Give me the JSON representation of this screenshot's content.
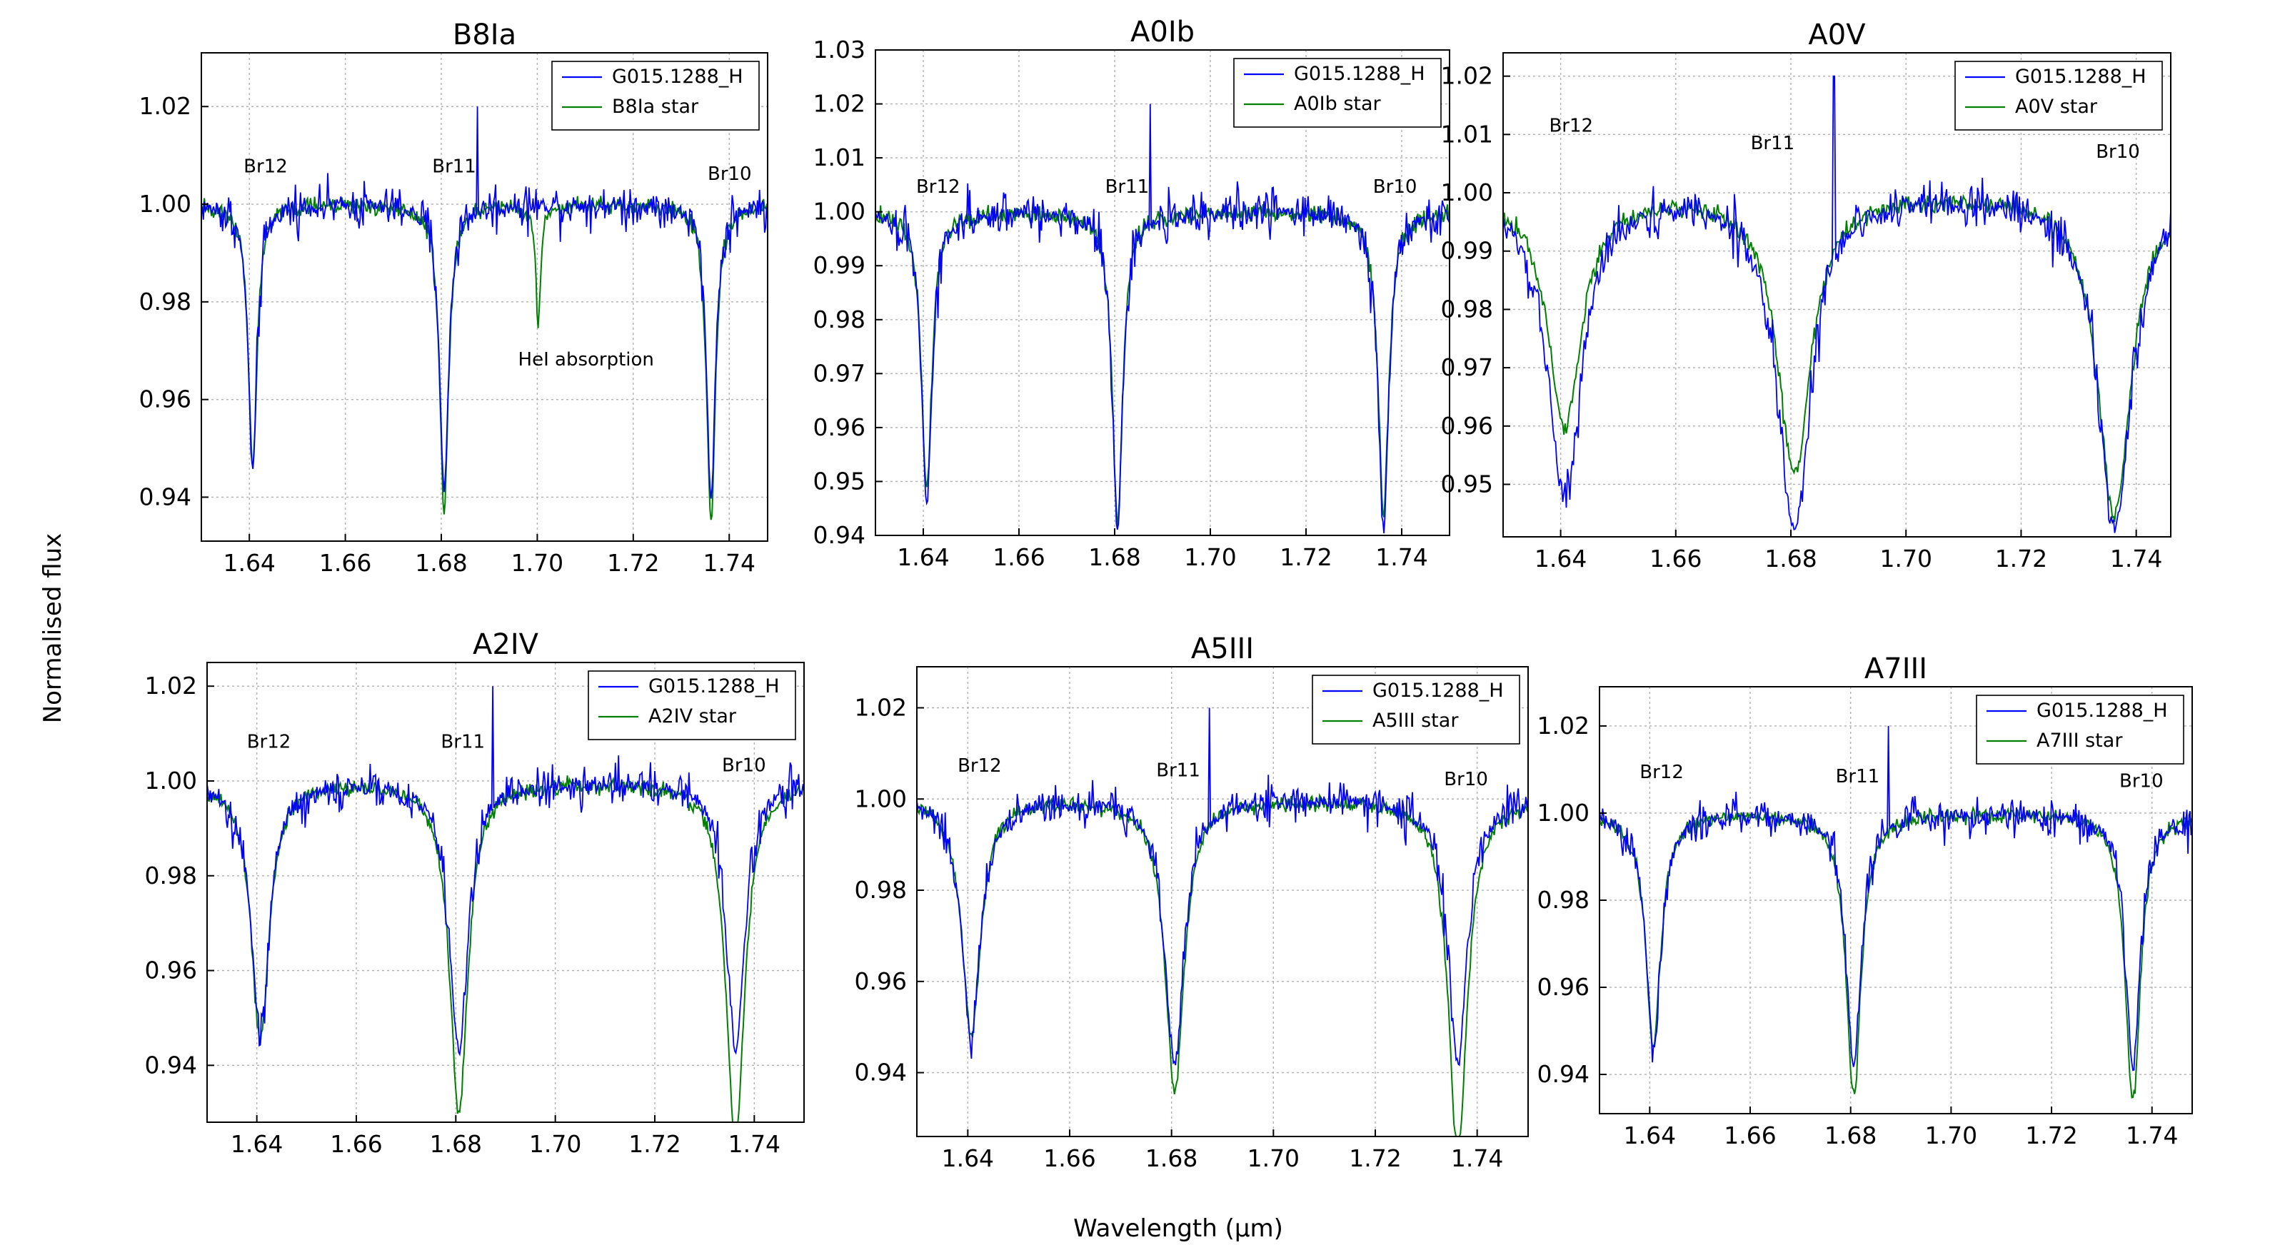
{
  "figure": {
    "ylabel": "Normalised flux",
    "xlabel": "Wavelength (µm)"
  },
  "colors": {
    "observed": "#0000ff",
    "template": "#008000",
    "grid": "#b0b0b0"
  },
  "chart_data": [
    {
      "type": "line",
      "title": "B8Ia",
      "xlim": [
        1.63,
        1.748
      ],
      "ylim": [
        0.931,
        1.031
      ],
      "xticks": [
        "1.64",
        "1.66",
        "1.68",
        "1.70",
        "1.72",
        "1.74"
      ],
      "yticks": [
        "0.94",
        "0.96",
        "0.98",
        "1.00",
        "1.02"
      ],
      "grid": true,
      "legend_placement": "top-right",
      "series": [
        {
          "name": "G015.1288_H",
          "role": "observed"
        },
        {
          "name": "B8Ia star",
          "role": "template"
        }
      ],
      "lines": [
        {
          "label": "Br12",
          "center": 1.6407,
          "obs_depth": 0.055,
          "tpl_depth": 0.054,
          "width": 0.0011
        },
        {
          "label": "Br11",
          "center": 1.6806,
          "obs_depth": 0.059,
          "tpl_depth": 0.063,
          "width": 0.0011
        },
        {
          "label": "Br10",
          "center": 1.7362,
          "obs_depth": 0.06,
          "tpl_depth": 0.066,
          "width": 0.0011
        }
      ],
      "extra_absorption": {
        "center": 1.7002,
        "depth": 0.025,
        "width": 0.0006
      },
      "annotations": [
        {
          "text": "Br12",
          "x": 1.6388,
          "y": 1.0065
        },
        {
          "text": "Br11",
          "x": 1.6781,
          "y": 1.0065
        },
        {
          "text": "Br10",
          "x": 1.7355,
          "y": 1.005
        },
        {
          "text": "HeI absorption",
          "x": 1.696,
          "y": 0.967
        }
      ],
      "spike": {
        "x": 1.6875,
        "y": 1.02
      },
      "noise": 0.0045
    },
    {
      "type": "line",
      "title": "A0Ib",
      "xlim": [
        1.63,
        1.75
      ],
      "ylim": [
        0.94,
        1.03
      ],
      "xticks": [
        "1.64",
        "1.66",
        "1.68",
        "1.70",
        "1.72",
        "1.74"
      ],
      "yticks": [
        "0.94",
        "0.95",
        "0.96",
        "0.97",
        "0.98",
        "0.99",
        "1.00",
        "1.01",
        "1.02",
        "1.03"
      ],
      "grid": true,
      "legend_placement": "top-right",
      "series": [
        {
          "name": "G015.1288_H",
          "role": "observed"
        },
        {
          "name": "A0Ib star",
          "role": "template"
        }
      ],
      "lines": [
        {
          "label": "Br12",
          "center": 1.6407,
          "obs_depth": 0.054,
          "tpl_depth": 0.052,
          "width": 0.0013
        },
        {
          "label": "Br11",
          "center": 1.6806,
          "obs_depth": 0.059,
          "tpl_depth": 0.058,
          "width": 0.0013
        },
        {
          "label": "Br10",
          "center": 1.7362,
          "obs_depth": 0.059,
          "tpl_depth": 0.056,
          "width": 0.0013
        }
      ],
      "annotations": [
        {
          "text": "Br12",
          "x": 1.6385,
          "y": 1.0035
        },
        {
          "text": "Br11",
          "x": 1.678,
          "y": 1.0035
        },
        {
          "text": "Br10",
          "x": 1.734,
          "y": 1.0035
        }
      ],
      "spike": {
        "x": 1.6875,
        "y": 1.02
      },
      "noise": 0.0045
    },
    {
      "type": "line",
      "title": "A0V",
      "xlim": [
        1.63,
        1.746
      ],
      "ylim": [
        0.941,
        1.024
      ],
      "xticks": [
        "1.64",
        "1.66",
        "1.68",
        "1.70",
        "1.72",
        "1.74"
      ],
      "yticks": [
        "0.95",
        "0.96",
        "0.97",
        "0.98",
        "0.99",
        "1.00",
        "1.01",
        "1.02"
      ],
      "grid": true,
      "legend_placement": "top-right",
      "series": [
        {
          "name": "G015.1288_H",
          "role": "observed"
        },
        {
          "name": "A0V star",
          "role": "template"
        }
      ],
      "lines": [
        {
          "label": "Br12",
          "center": 1.6407,
          "obs_depth": 0.052,
          "tpl_depth": 0.04,
          "width": 0.0035
        },
        {
          "label": "Br11",
          "center": 1.6806,
          "obs_depth": 0.057,
          "tpl_depth": 0.048,
          "width": 0.0035
        },
        {
          "label": "Br10",
          "center": 1.7362,
          "obs_depth": 0.057,
          "tpl_depth": 0.055,
          "width": 0.0035
        }
      ],
      "annotations": [
        {
          "text": "Br12",
          "x": 1.638,
          "y": 1.0105
        },
        {
          "text": "Br11",
          "x": 1.673,
          "y": 1.0075
        },
        {
          "text": "Br10",
          "x": 1.733,
          "y": 1.006
        }
      ],
      "spike": {
        "x": 1.6875,
        "y": 1.02
      },
      "noise": 0.0045
    },
    {
      "type": "line",
      "title": "A2IV",
      "xlim": [
        1.63,
        1.75
      ],
      "ylim": [
        0.928,
        1.025
      ],
      "xticks": [
        "1.64",
        "1.66",
        "1.68",
        "1.70",
        "1.72",
        "1.74"
      ],
      "yticks": [
        "0.94",
        "0.96",
        "0.98",
        "1.00",
        "1.02"
      ],
      "grid": true,
      "legend_placement": "top-right",
      "series": [
        {
          "name": "G015.1288_H",
          "role": "observed"
        },
        {
          "name": "A2IV star",
          "role": "template"
        }
      ],
      "lines": [
        {
          "label": "Br12",
          "center": 1.6407,
          "obs_depth": 0.053,
          "tpl_depth": 0.055,
          "width": 0.0022
        },
        {
          "label": "Br11",
          "center": 1.6806,
          "obs_depth": 0.057,
          "tpl_depth": 0.07,
          "width": 0.0022
        },
        {
          "label": "Br10",
          "center": 1.7362,
          "obs_depth": 0.057,
          "tpl_depth": 0.077,
          "width": 0.0022
        }
      ],
      "annotations": [
        {
          "text": "Br12",
          "x": 1.638,
          "y": 1.007
        },
        {
          "text": "Br11",
          "x": 1.677,
          "y": 1.007
        },
        {
          "text": "Br10",
          "x": 1.7335,
          "y": 1.002
        }
      ],
      "spike": {
        "x": 1.6875,
        "y": 1.02
      },
      "noise": 0.0045
    },
    {
      "type": "line",
      "title": "A5III",
      "xlim": [
        1.63,
        1.75
      ],
      "ylim": [
        0.926,
        1.029
      ],
      "xticks": [
        "1.64",
        "1.66",
        "1.68",
        "1.70",
        "1.72",
        "1.74"
      ],
      "yticks": [
        "0.94",
        "0.96",
        "0.98",
        "1.00",
        "1.02"
      ],
      "grid": true,
      "legend_placement": "top-right",
      "series": [
        {
          "name": "G015.1288_H",
          "role": "observed"
        },
        {
          "name": "A5III star",
          "role": "template"
        }
      ],
      "lines": [
        {
          "label": "Br12",
          "center": 1.6407,
          "obs_depth": 0.053,
          "tpl_depth": 0.052,
          "width": 0.0022
        },
        {
          "label": "Br11",
          "center": 1.6806,
          "obs_depth": 0.058,
          "tpl_depth": 0.064,
          "width": 0.0022
        },
        {
          "label": "Br10",
          "center": 1.7362,
          "obs_depth": 0.058,
          "tpl_depth": 0.078,
          "width": 0.0022
        }
      ],
      "annotations": [
        {
          "text": "Br12",
          "x": 1.638,
          "y": 1.006
        },
        {
          "text": "Br11",
          "x": 1.677,
          "y": 1.005
        },
        {
          "text": "Br10",
          "x": 1.7335,
          "y": 1.003
        }
      ],
      "spike": {
        "x": 1.6875,
        "y": 1.02
      },
      "noise": 0.0045
    },
    {
      "type": "line",
      "title": "A7III",
      "xlim": [
        1.63,
        1.748
      ],
      "ylim": [
        0.931,
        1.029
      ],
      "xticks": [
        "1.64",
        "1.66",
        "1.68",
        "1.70",
        "1.72",
        "1.74"
      ],
      "yticks": [
        "0.94",
        "0.96",
        "0.98",
        "1.00",
        "1.02"
      ],
      "grid": true,
      "legend_placement": "top-right",
      "series": [
        {
          "name": "G015.1288_H",
          "role": "observed"
        },
        {
          "name": "A7III star",
          "role": "template"
        }
      ],
      "lines": [
        {
          "label": "Br12",
          "center": 1.6407,
          "obs_depth": 0.053,
          "tpl_depth": 0.054,
          "width": 0.0018
        },
        {
          "label": "Br11",
          "center": 1.6806,
          "obs_depth": 0.058,
          "tpl_depth": 0.065,
          "width": 0.0018
        },
        {
          "label": "Br10",
          "center": 1.7362,
          "obs_depth": 0.058,
          "tpl_depth": 0.066,
          "width": 0.0018
        }
      ],
      "annotations": [
        {
          "text": "Br12",
          "x": 1.638,
          "y": 1.008
        },
        {
          "text": "Br11",
          "x": 1.677,
          "y": 1.007
        },
        {
          "text": "Br10",
          "x": 1.7335,
          "y": 1.006
        }
      ],
      "spike": {
        "x": 1.6875,
        "y": 1.02
      },
      "noise": 0.0045
    }
  ]
}
